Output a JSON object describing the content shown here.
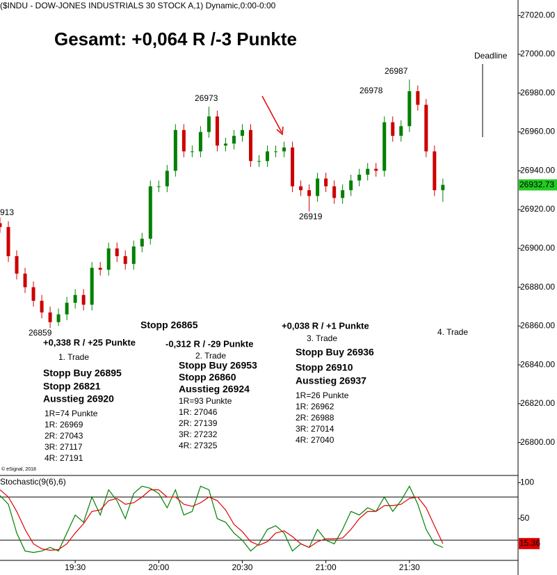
{
  "chart_data": [
    {
      "type": "candlestick",
      "header": "($INDU - DOW-JONES INDUSTRIALS 30 STOCK A,1) Dynamic,0:00-0:00",
      "title": "Gesamt: +0,064 R /-3 Punkte",
      "source": "© eSignal, 2018",
      "x": [
        1143,
        1146,
        1149,
        1152,
        1155,
        1158,
        1161,
        1164,
        1167,
        1170,
        1173,
        1176,
        1179,
        1182,
        1185,
        1188,
        1191,
        1194,
        1197,
        1200,
        1203,
        1206,
        1209,
        1212,
        1215,
        1218,
        1221,
        1224,
        1227,
        1230,
        1233,
        1236,
        1239,
        1242,
        1245,
        1248,
        1251,
        1254,
        1257,
        1260,
        1263,
        1266,
        1269,
        1272,
        1275,
        1278,
        1281,
        1284,
        1287,
        1290,
        1293,
        1296,
        1299,
        1302
      ],
      "open": [
        26913,
        26911,
        26896,
        26887,
        26880,
        26873,
        26867,
        26862,
        26866,
        26872,
        26876,
        26871,
        26890,
        26889,
        26900,
        26896,
        26892,
        26901,
        26905,
        26932,
        26932,
        26940,
        26961,
        26950,
        26950,
        26960,
        26968,
        26953,
        26954,
        26958,
        26961,
        26945,
        26945,
        26950,
        26950,
        26952,
        26932,
        26930,
        26927,
        26936,
        26932,
        26926,
        26930,
        26935,
        26938,
        26941,
        26940,
        26965,
        26958,
        26963,
        26981,
        26974,
        26950,
        26930
      ],
      "high": [
        26916,
        26914,
        26899,
        26890,
        26883,
        26876,
        26870,
        26869,
        26875,
        26879,
        26879,
        26893,
        26893,
        26903,
        26903,
        26899,
        26904,
        26908,
        26935,
        26935,
        26943,
        26964,
        26964,
        26953,
        26963,
        26973,
        26971,
        26957,
        26961,
        26964,
        26964,
        26948,
        26953,
        26953,
        26955,
        26955,
        26935,
        26933,
        26939,
        26939,
        26935,
        26933,
        26938,
        26941,
        26944,
        26944,
        26968,
        26968,
        26966,
        26987,
        26984,
        26977,
        26953,
        26936
      ],
      "low": [
        26908,
        26893,
        26884,
        26877,
        26870,
        26864,
        26859,
        26860,
        26863,
        26869,
        26868,
        26868,
        26886,
        26886,
        26893,
        26889,
        26889,
        26898,
        26902,
        26929,
        26929,
        26937,
        26947,
        26947,
        26947,
        26957,
        26950,
        26950,
        26951,
        26955,
        26942,
        26942,
        26942,
        26947,
        26947,
        26929,
        26927,
        26919,
        26924,
        26929,
        26923,
        26923,
        26927,
        26932,
        26935,
        26937,
        26937,
        26955,
        26955,
        26960,
        26971,
        26947,
        26927,
        26924
      ],
      "close": [
        26911,
        26896,
        26887,
        26880,
        26873,
        26867,
        26862,
        26866,
        26872,
        26876,
        26871,
        26890,
        26889,
        26900,
        26896,
        26892,
        26901,
        26905,
        26932,
        26932,
        26940,
        26961,
        26950,
        26950,
        26960,
        26968,
        26953,
        26954,
        26958,
        26961,
        26945,
        26945,
        26950,
        26950,
        26952,
        26932,
        26930,
        26927,
        26936,
        26932,
        26926,
        26930,
        26935,
        26938,
        26941,
        26940,
        26965,
        26958,
        26963,
        26981,
        26974,
        26950,
        26930,
        26932.73
      ],
      "up_color": "#008000",
      "down_color": "#cc0000",
      "xlim": [
        1143,
        1329
      ],
      "ylim": [
        26783,
        27028
      ],
      "yticks": [
        {
          "value": 26800,
          "label": "26800.00"
        },
        {
          "value": 26820,
          "label": "26820.00"
        },
        {
          "value": 26840,
          "label": "26840.00"
        },
        {
          "value": 26860,
          "label": "26860.00"
        },
        {
          "value": 26880,
          "label": "26880.00"
        },
        {
          "value": 26900,
          "label": "26900.00"
        },
        {
          "value": 26920,
          "label": "26920.00"
        },
        {
          "value": 26940,
          "label": "26940.00"
        },
        {
          "value": 26960,
          "label": "26960.00"
        },
        {
          "value": 26980,
          "label": "26980.00"
        },
        {
          "value": 27000,
          "label": "27000.00"
        },
        {
          "value": 27020,
          "label": "27020.00"
        }
      ],
      "annotations": [
        {
          "text": "26973",
          "color": "#000000",
          "bold": false
        },
        {
          "text": "26987",
          "color": "#000000",
          "bold": false
        },
        {
          "text": "26978",
          "color": "#000000",
          "bold": false
        },
        {
          "text": "26919",
          "color": "#000000",
          "bold": false
        },
        {
          "text": "26859",
          "color": "#000000",
          "bold": false
        },
        {
          "text": "913",
          "color": "#000000",
          "bold": false
        },
        {
          "text": "Deadline",
          "color": "#000000",
          "bold": false
        },
        {
          "text": "Stopp 26865",
          "color": "#1a7f1a",
          "bold": true
        },
        {
          "text": "+0,338 R / +25 Punkte",
          "color": "#000000",
          "bold": true
        },
        {
          "text": "1. Trade",
          "color": "#000000",
          "bold": false
        },
        {
          "text": "Stopp Buy 26895",
          "color": "#1a7f1a",
          "bold": true
        },
        {
          "text": "Stopp 26821",
          "color": "#1a7f1a",
          "bold": true
        },
        {
          "text": "Ausstieg 26920",
          "color": "#1a7f1a",
          "bold": true
        },
        {
          "text": "1R=74 Punkte",
          "color": "#000000",
          "bold": false
        },
        {
          "text": "1R: 26969",
          "color": "#000000",
          "bold": false
        },
        {
          "text": "2R: 27043",
          "color": "#000000",
          "bold": false
        },
        {
          "text": "3R: 27117",
          "color": "#000000",
          "bold": false
        },
        {
          "text": "4R: 27191",
          "color": "#000000",
          "bold": false
        },
        {
          "text": "-0,312 R / -29 Punkte",
          "color": "#000000",
          "bold": true
        },
        {
          "text": "2. Trade",
          "color": "#000000",
          "bold": false
        },
        {
          "text": "Stopp Buy 26953",
          "color": "#0000cc",
          "bold": true
        },
        {
          "text": "Stopp 26860",
          "color": "#0000cc",
          "bold": true
        },
        {
          "text": "Ausstieg 26924",
          "color": "#0000cc",
          "bold": true
        },
        {
          "text": "1R=93 Punkte",
          "color": "#000000",
          "bold": false
        },
        {
          "text": "1R: 27046",
          "color": "#000000",
          "bold": false
        },
        {
          "text": "2R: 27139",
          "color": "#000000",
          "bold": false
        },
        {
          "text": "3R: 27232",
          "color": "#000000",
          "bold": false
        },
        {
          "text": "4R: 27325",
          "color": "#000000",
          "bold": false
        },
        {
          "text": "+0,038 R / +1 Punkte",
          "color": "#000000",
          "bold": true
        },
        {
          "text": "3. Trade",
          "color": "#000000",
          "bold": false
        },
        {
          "text": "Stopp Buy 26936",
          "color": "#e600e6",
          "bold": true
        },
        {
          "text": "Stopp 26910",
          "color": "#e600e6",
          "bold": true
        },
        {
          "text": "Ausstieg 26937",
          "color": "#e600e6",
          "bold": true
        },
        {
          "text": "1R=26 Punkte",
          "color": "#000000",
          "bold": false
        },
        {
          "text": "1R: 26962",
          "color": "#000000",
          "bold": false
        },
        {
          "text": "2R: 26988",
          "color": "#000000",
          "bold": false
        },
        {
          "text": "3R: 27014",
          "color": "#000000",
          "bold": false
        },
        {
          "text": "4R: 27040",
          "color": "#000000",
          "bold": false
        },
        {
          "text": "4. Trade",
          "color": "#000000",
          "bold": false
        }
      ]
    },
    {
      "type": "line",
      "title": "Stochastic(9(6),6)",
      "title_color": "#008000",
      "x": [
        1143,
        1146,
        1149,
        1152,
        1155,
        1158,
        1161,
        1164,
        1167,
        1170,
        1173,
        1176,
        1179,
        1182,
        1185,
        1188,
        1191,
        1194,
        1197,
        1200,
        1203,
        1206,
        1209,
        1212,
        1215,
        1218,
        1221,
        1224,
        1227,
        1230,
        1233,
        1236,
        1239,
        1242,
        1245,
        1248,
        1251,
        1254,
        1257,
        1260,
        1263,
        1266,
        1269,
        1272,
        1275,
        1278,
        1281,
        1284,
        1287,
        1290,
        1293,
        1296,
        1299,
        1302
      ],
      "series": [
        {
          "color": "#008000",
          "values": [
            82,
            70,
            30,
            5,
            3,
            5,
            10,
            5,
            30,
            55,
            45,
            80,
            55,
            90,
            75,
            50,
            85,
            95,
            92,
            85,
            65,
            90,
            55,
            60,
            95,
            90,
            50,
            45,
            30,
            20,
            5,
            15,
            35,
            40,
            30,
            5,
            15,
            10,
            35,
            20,
            15,
            35,
            60,
            55,
            65,
            60,
            80,
            60,
            75,
            95,
            70,
            35,
            15,
            10
          ]
        },
        {
          "color": "#e00000",
          "values": [
            90,
            80,
            60,
            35,
            15,
            8,
            6,
            7,
            15,
            30,
            43,
            60,
            62,
            75,
            78,
            70,
            72,
            80,
            90,
            90,
            80,
            80,
            70,
            67,
            72,
            80,
            75,
            62,
            42,
            32,
            18,
            13,
            18,
            30,
            33,
            25,
            15,
            10,
            18,
            22,
            22,
            23,
            35,
            50,
            60,
            60,
            68,
            68,
            70,
            78,
            80,
            65,
            40,
            15.36
          ]
        }
      ],
      "levels": [
        80,
        20
      ],
      "xlim": [
        1143,
        1329
      ],
      "ylim": [
        -8,
        108
      ],
      "yticks": [
        50,
        100
      ],
      "xticks": [
        {
          "value": 1170,
          "label": "19:30"
        },
        {
          "value": 1200,
          "label": "20:00"
        },
        {
          "value": 1230,
          "label": "20:30"
        },
        {
          "value": 1260,
          "label": "21:00"
        },
        {
          "value": 1290,
          "label": "21:30"
        }
      ]
    }
  ]
}
